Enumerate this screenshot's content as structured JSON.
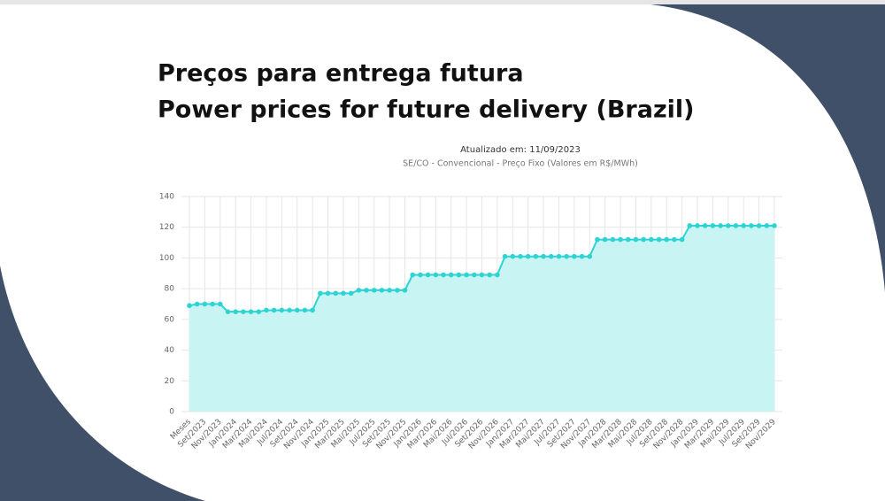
{
  "chart_data": {
    "type": "line",
    "title": [
      "Preços para entrega futura",
      "Power prices for future delivery (Brazil)"
    ],
    "subtitle": [
      "Atualizado em: 11/09/2023",
      "SE/CO - Convencional - Preço Fixo (Valores em R$/MWh)"
    ],
    "categories": [
      "Meses",
      null,
      "Set/2023",
      null,
      "Nov/2023",
      null,
      "Jan/2024",
      null,
      "Mar/2024",
      null,
      "Mai/2024",
      null,
      "Jul/2024",
      null,
      "Set/2024",
      null,
      "Nov/2024",
      null,
      "Jan/2025",
      null,
      "Mar/2025",
      null,
      "Mai/2025",
      null,
      "Jul/2025",
      null,
      "Set/2025",
      null,
      "Nov/2025",
      null,
      "Jan/2026",
      null,
      "Mar/2026",
      null,
      "Mai/2026",
      null,
      "Jul/2026",
      null,
      "Set/2026",
      null,
      "Nov/2026",
      null,
      "Jan/2027",
      null,
      "Mar/2027",
      null,
      "Mai/2027",
      null,
      "Jul/2027",
      null,
      "Set/2027",
      null,
      "Nov/2027",
      null,
      "Jan/2028",
      null,
      "Mar/2028",
      null,
      "Mai/2028",
      null,
      "Jul/2028",
      null,
      "Set/2028",
      null,
      "Nov/2028",
      null,
      "Jan/2029",
      null,
      "Mar/2029",
      null,
      "Mai/2029",
      null,
      "Jul/2029",
      null,
      "Set/2029",
      null,
      "Nov/2029"
    ],
    "series": [
      {
        "color": "#2ed3d3",
        "fill": "#c9f4f4",
        "values": [
          69,
          70,
          70,
          70,
          70,
          65,
          65,
          65,
          65,
          65,
          66,
          66,
          66,
          66,
          66,
          66,
          66,
          77,
          77,
          77,
          77,
          77,
          79,
          79,
          79,
          79,
          79,
          79,
          79,
          89,
          89,
          89,
          89,
          89,
          89,
          89,
          89,
          89,
          89,
          89,
          89,
          101,
          101,
          101,
          101,
          101,
          101,
          101,
          101,
          101,
          101,
          101,
          101,
          112,
          112,
          112,
          112,
          112,
          112,
          112,
          112,
          112,
          112,
          112,
          112,
          121,
          121,
          121,
          121,
          121,
          121,
          121,
          121,
          121,
          121,
          121,
          121
        ]
      }
    ],
    "ylim": [
      0,
      140
    ],
    "yticks": [
      0,
      20,
      40,
      60,
      80,
      100,
      120,
      140
    ],
    "grid": true
  }
}
